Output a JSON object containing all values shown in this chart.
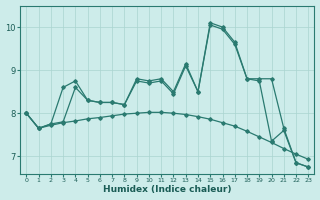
{
  "xlabel": "Humidex (Indice chaleur)",
  "background_color": "#cdecea",
  "grid_color": "#aad4d0",
  "line_color": "#2a7a70",
  "xlim": [
    -0.5,
    23.5
  ],
  "ylim": [
    6.6,
    10.5
  ],
  "yticks": [
    7,
    8,
    9,
    10
  ],
  "xticks": [
    0,
    1,
    2,
    3,
    4,
    5,
    6,
    7,
    8,
    9,
    10,
    11,
    12,
    13,
    14,
    15,
    16,
    17,
    18,
    19,
    20,
    21,
    22,
    23
  ],
  "line1_x": [
    0,
    1,
    2,
    3,
    4,
    5,
    6,
    7,
    8,
    9,
    10,
    11,
    12,
    13,
    14,
    15,
    16,
    17,
    18,
    19,
    20,
    21,
    22,
    23
  ],
  "line1_y": [
    8.0,
    7.65,
    7.75,
    8.6,
    8.75,
    8.3,
    8.25,
    8.25,
    8.2,
    8.8,
    8.75,
    8.8,
    8.5,
    9.15,
    8.5,
    10.1,
    10.0,
    9.65,
    8.8,
    8.8,
    8.8,
    7.65,
    6.85,
    6.75
  ],
  "line2_x": [
    0,
    1,
    2,
    3,
    4,
    5,
    6,
    7,
    8,
    9,
    10,
    11,
    12,
    13,
    14,
    15,
    16,
    17,
    18,
    19,
    20,
    21,
    22,
    23
  ],
  "line2_y": [
    8.0,
    7.65,
    7.75,
    7.8,
    8.6,
    8.3,
    8.25,
    8.25,
    8.2,
    8.75,
    8.7,
    8.75,
    8.45,
    9.1,
    8.5,
    10.05,
    9.95,
    9.6,
    8.8,
    8.75,
    7.35,
    7.6,
    6.85,
    6.75
  ],
  "line3_x": [
    0,
    1,
    2,
    3,
    4,
    5,
    6,
    7,
    8,
    9,
    10,
    11,
    12,
    13,
    14,
    15,
    16,
    17,
    18,
    19,
    20,
    21,
    22,
    23
  ],
  "line3_y": [
    8.0,
    7.65,
    7.72,
    7.78,
    7.82,
    7.87,
    7.9,
    7.94,
    7.98,
    8.0,
    8.02,
    8.02,
    8.0,
    7.97,
    7.92,
    7.86,
    7.78,
    7.7,
    7.58,
    7.45,
    7.32,
    7.18,
    7.05,
    6.93
  ]
}
